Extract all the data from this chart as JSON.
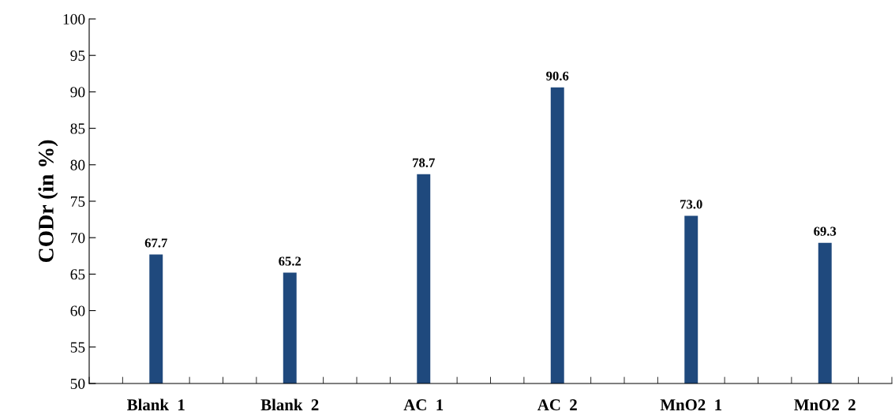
{
  "chart_data": {
    "type": "bar",
    "ylabel": "CODr (in %)",
    "categories": [
      "Blank  1",
      "Blank  2",
      "AC  1",
      "AC  2",
      "MnO2  1",
      "MnO2  2"
    ],
    "values": [
      67.7,
      65.2,
      78.7,
      90.6,
      73.0,
      69.3
    ],
    "value_labels": [
      "67.7",
      "65.2",
      "78.7",
      "90.6",
      "73.0",
      "69.3"
    ],
    "color": "#1f497d",
    "ylim": [
      50,
      100
    ],
    "yticks": [
      50,
      55,
      60,
      65,
      70,
      75,
      80,
      85,
      90,
      95,
      100
    ],
    "grid": false,
    "legend": false
  }
}
